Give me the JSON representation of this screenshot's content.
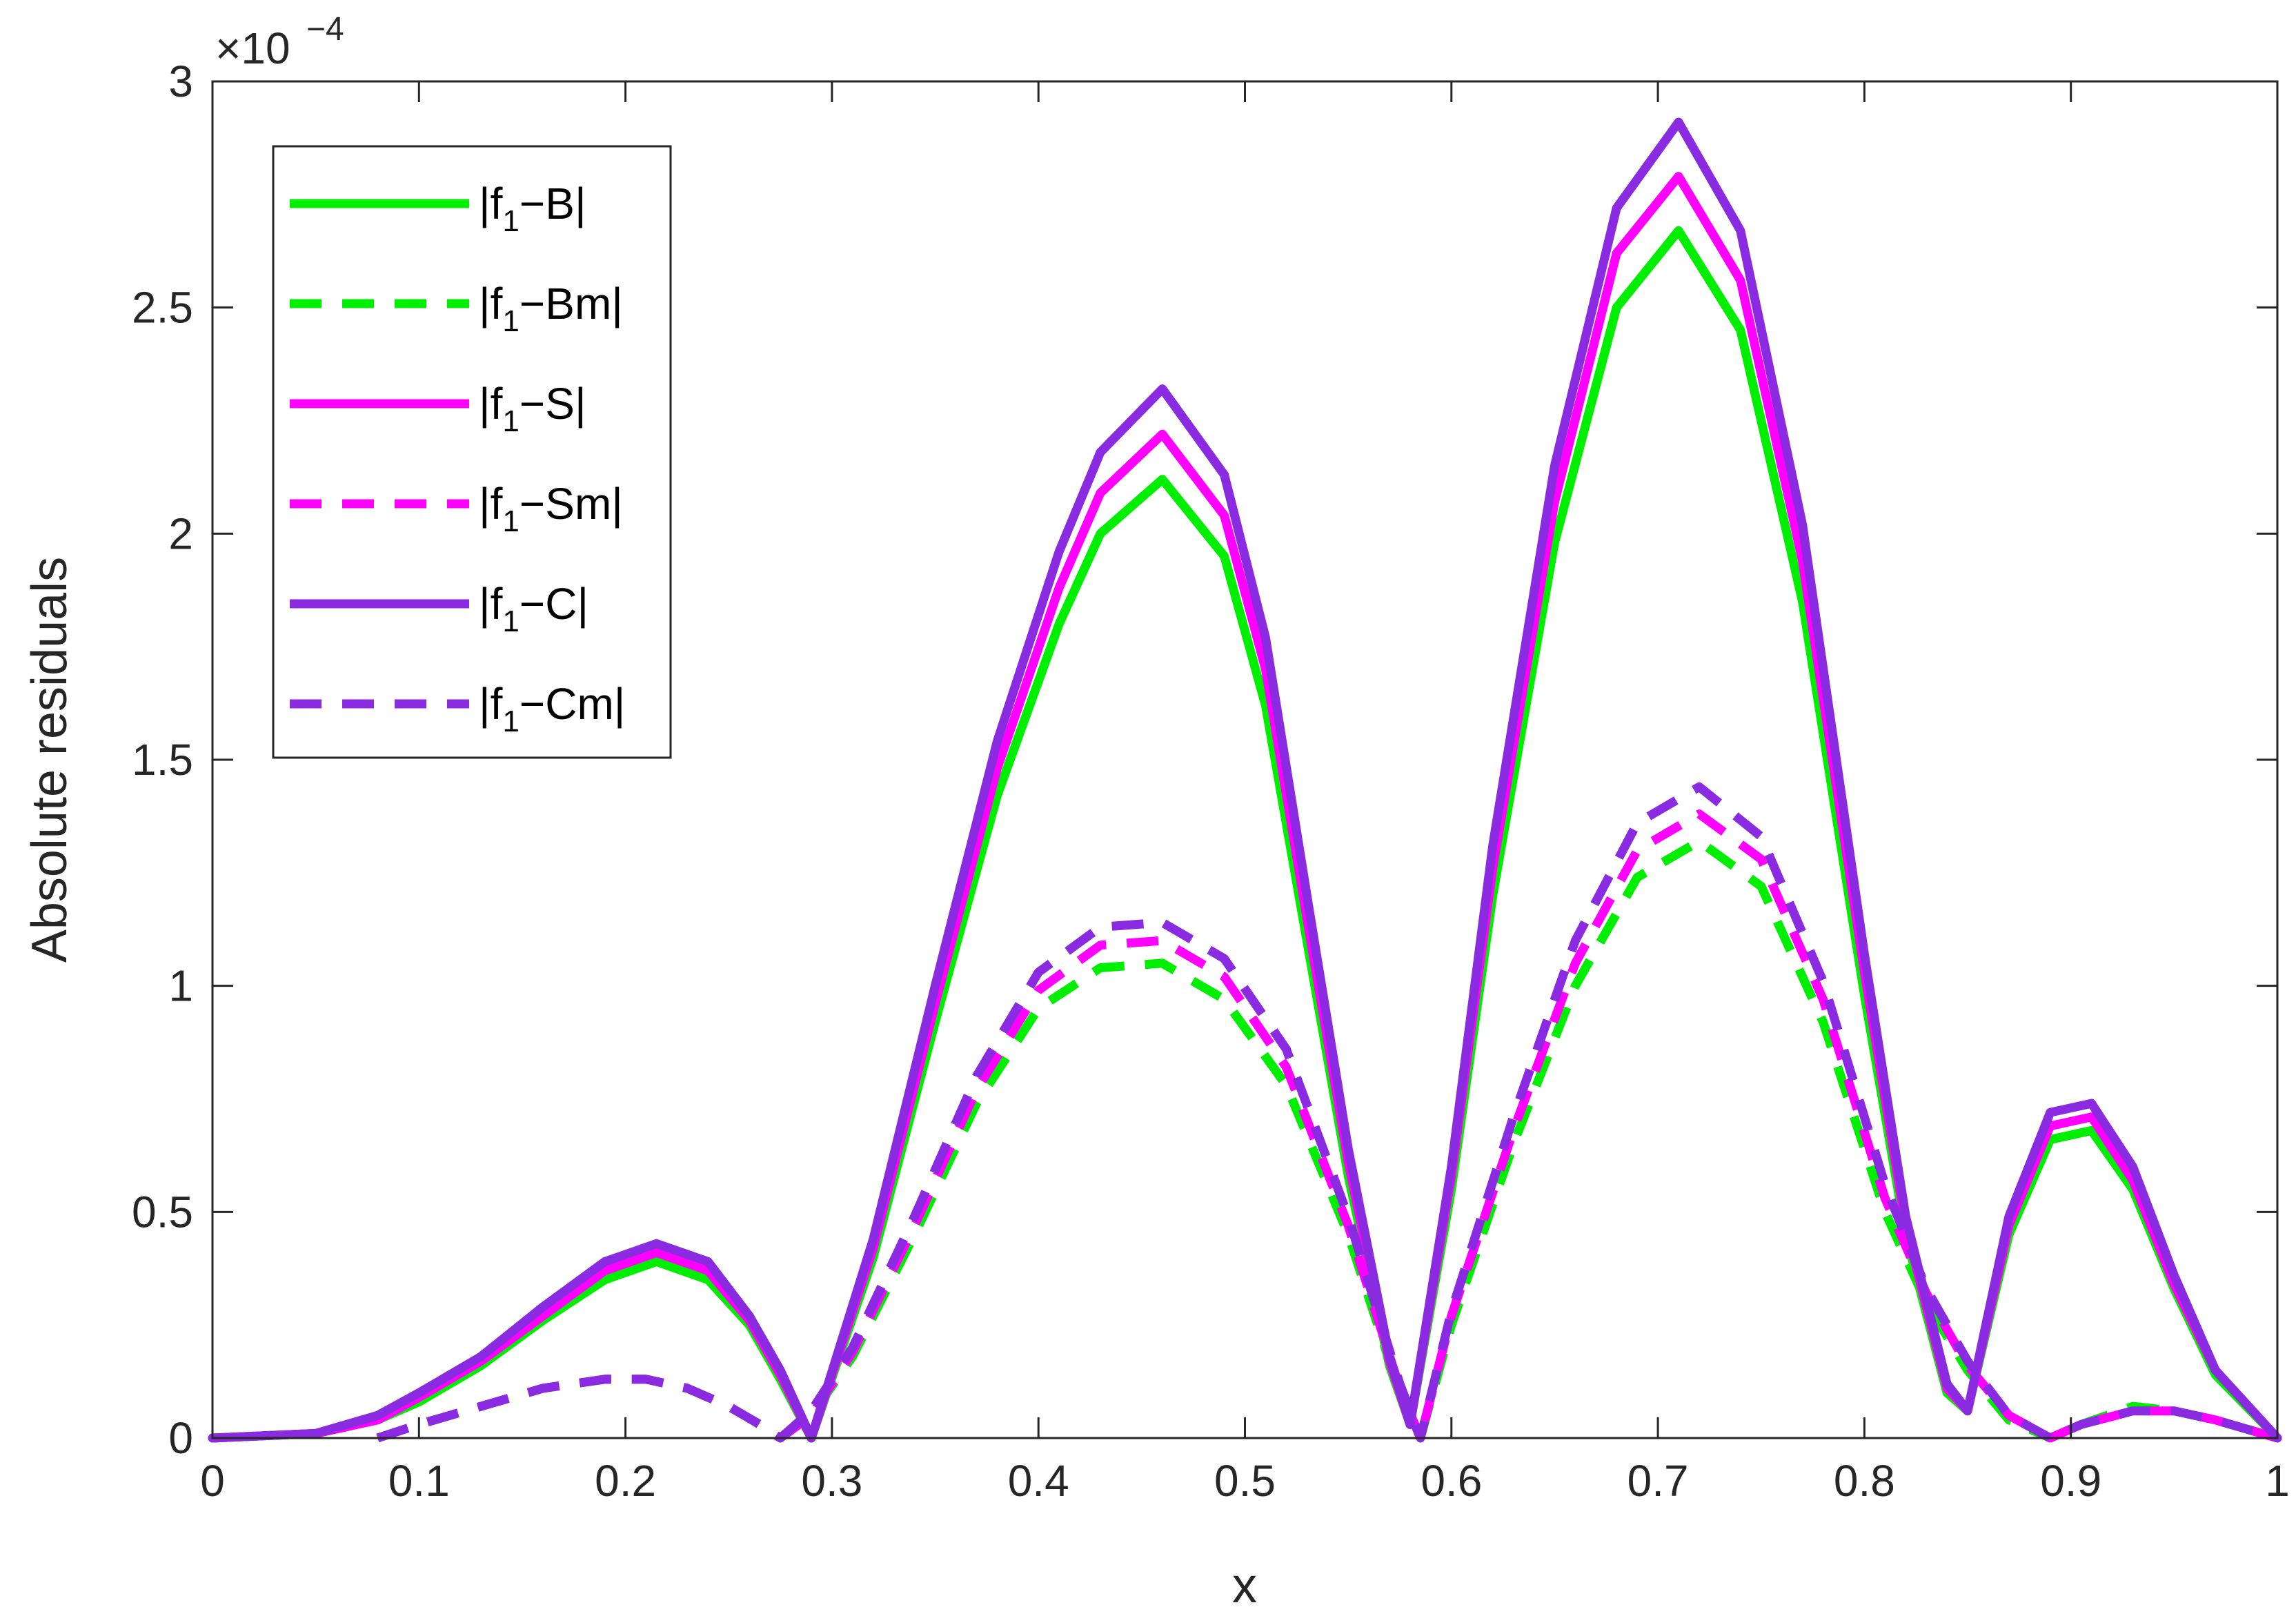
{
  "chart_data": {
    "type": "line",
    "title": "",
    "xlabel": "x",
    "ylabel": "Absolute residuals",
    "exponent_label": "×10",
    "exponent_power": "−4",
    "xlim": [
      0,
      1
    ],
    "ylim": [
      0,
      3
    ],
    "x_ticks": [
      "0",
      "0.1",
      "0.2",
      "0.3",
      "0.4",
      "0.5",
      "0.6",
      "0.7",
      "0.8",
      "0.9",
      "1"
    ],
    "y_ticks": [
      "0",
      "0.5",
      "1",
      "1.5",
      "2",
      "2.5",
      "3"
    ],
    "y_scale_note": "values in units of 1e-4",
    "grid": false,
    "legend_position": "top-left",
    "colors": {
      "green": "#00ee00",
      "magenta": "#ff00ff",
      "purple": "#8a2be2",
      "axis": "#262626"
    },
    "series": [
      {
        "name": "|f1−B|",
        "label_pre": "|f",
        "label_sub": "1",
        "label_post": "−B|",
        "color": "#00ee00",
        "dash": "solid",
        "x": [
          0,
          0.05,
          0.08,
          0.1,
          0.13,
          0.16,
          0.19,
          0.215,
          0.24,
          0.26,
          0.275,
          0.29,
          0.32,
          0.35,
          0.38,
          0.41,
          0.43,
          0.46,
          0.49,
          0.51,
          0.53,
          0.55,
          0.57,
          0.58,
          0.6,
          0.62,
          0.65,
          0.68,
          0.71,
          0.74,
          0.77,
          0.8,
          0.82,
          0.84,
          0.85,
          0.87,
          0.89,
          0.91,
          0.93,
          0.95,
          0.97,
          1.0
        ],
        "y": [
          0,
          0.01,
          0.04,
          0.08,
          0.16,
          0.26,
          0.35,
          0.39,
          0.35,
          0.25,
          0.13,
          0.0,
          0.4,
          0.92,
          1.42,
          1.8,
          2.0,
          2.12,
          1.95,
          1.62,
          1.1,
          0.58,
          0.16,
          0.03,
          0.55,
          1.2,
          1.98,
          2.5,
          2.67,
          2.45,
          1.85,
          0.98,
          0.45,
          0.1,
          0.06,
          0.45,
          0.66,
          0.68,
          0.55,
          0.33,
          0.14,
          0.0
        ]
      },
      {
        "name": "|f1−Bm|",
        "label_pre": "|f",
        "label_sub": "1",
        "label_post": "−Bm|",
        "color": "#00ee00",
        "dash": "dashed",
        "x": [
          0.08,
          0.1,
          0.13,
          0.16,
          0.19,
          0.21,
          0.23,
          0.25,
          0.265,
          0.275,
          0.29,
          0.31,
          0.34,
          0.37,
          0.4,
          0.43,
          0.46,
          0.49,
          0.52,
          0.55,
          0.575,
          0.585,
          0.6,
          0.63,
          0.66,
          0.69,
          0.72,
          0.75,
          0.78,
          0.81,
          0.83,
          0.85,
          0.87,
          0.89,
          0.905,
          0.93,
          0.95,
          0.97,
          1.0
        ],
        "y": [
          0.0,
          0.03,
          0.07,
          0.11,
          0.13,
          0.13,
          0.11,
          0.07,
          0.03,
          0.0,
          0.05,
          0.18,
          0.45,
          0.74,
          0.95,
          1.04,
          1.05,
          0.97,
          0.78,
          0.45,
          0.1,
          0.0,
          0.25,
          0.65,
          1.0,
          1.24,
          1.32,
          1.22,
          0.92,
          0.5,
          0.3,
          0.15,
          0.04,
          0.0,
          0.03,
          0.07,
          0.06,
          0.04,
          0.0
        ]
      },
      {
        "name": "|f1−S|",
        "label_pre": "|f",
        "label_sub": "1",
        "label_post": "−S|",
        "color": "#ff00ff",
        "dash": "solid",
        "x": [
          0,
          0.05,
          0.08,
          0.1,
          0.13,
          0.16,
          0.19,
          0.215,
          0.24,
          0.26,
          0.275,
          0.29,
          0.32,
          0.35,
          0.38,
          0.41,
          0.43,
          0.46,
          0.49,
          0.51,
          0.53,
          0.55,
          0.57,
          0.58,
          0.6,
          0.62,
          0.65,
          0.68,
          0.71,
          0.74,
          0.77,
          0.8,
          0.82,
          0.84,
          0.85,
          0.87,
          0.89,
          0.91,
          0.93,
          0.95,
          0.97,
          1.0
        ],
        "y": [
          0,
          0.01,
          0.04,
          0.09,
          0.17,
          0.27,
          0.37,
          0.41,
          0.37,
          0.26,
          0.14,
          0.0,
          0.42,
          0.96,
          1.48,
          1.88,
          2.09,
          2.22,
          2.04,
          1.7,
          1.15,
          0.61,
          0.17,
          0.03,
          0.58,
          1.26,
          2.07,
          2.62,
          2.79,
          2.56,
          1.94,
          1.03,
          0.47,
          0.11,
          0.06,
          0.47,
          0.69,
          0.71,
          0.57,
          0.34,
          0.15,
          0.0
        ]
      },
      {
        "name": "|f1−Sm|",
        "label_pre": "|f",
        "label_sub": "1",
        "label_post": "−Sm|",
        "color": "#ff00ff",
        "dash": "dashed",
        "x": [
          0.08,
          0.1,
          0.13,
          0.16,
          0.19,
          0.21,
          0.23,
          0.25,
          0.265,
          0.275,
          0.29,
          0.31,
          0.34,
          0.37,
          0.4,
          0.43,
          0.46,
          0.49,
          0.52,
          0.55,
          0.575,
          0.585,
          0.6,
          0.63,
          0.66,
          0.69,
          0.72,
          0.75,
          0.78,
          0.81,
          0.83,
          0.85,
          0.87,
          0.89,
          0.905,
          0.93,
          0.95,
          0.97,
          1.0
        ],
        "y": [
          0.0,
          0.03,
          0.07,
          0.11,
          0.13,
          0.13,
          0.11,
          0.07,
          0.03,
          0.0,
          0.05,
          0.19,
          0.47,
          0.77,
          0.99,
          1.09,
          1.1,
          1.02,
          0.82,
          0.47,
          0.11,
          0.0,
          0.27,
          0.68,
          1.05,
          1.3,
          1.38,
          1.28,
          0.97,
          0.53,
          0.32,
          0.16,
          0.05,
          0.0,
          0.03,
          0.06,
          0.06,
          0.04,
          0.0
        ]
      },
      {
        "name": "|f1−C|",
        "label_pre": "|f",
        "label_sub": "1",
        "label_post": "−C|",
        "color": "#8a2be2",
        "dash": "solid",
        "x": [
          0,
          0.05,
          0.08,
          0.1,
          0.13,
          0.16,
          0.19,
          0.215,
          0.24,
          0.26,
          0.275,
          0.29,
          0.32,
          0.35,
          0.38,
          0.41,
          0.43,
          0.46,
          0.49,
          0.51,
          0.53,
          0.55,
          0.57,
          0.58,
          0.6,
          0.62,
          0.65,
          0.68,
          0.71,
          0.74,
          0.77,
          0.8,
          0.82,
          0.84,
          0.85,
          0.87,
          0.89,
          0.91,
          0.93,
          0.95,
          0.97,
          1.0
        ],
        "y": [
          0,
          0.01,
          0.05,
          0.1,
          0.18,
          0.29,
          0.39,
          0.43,
          0.39,
          0.27,
          0.15,
          0.0,
          0.44,
          1.0,
          1.54,
          1.96,
          2.18,
          2.32,
          2.13,
          1.77,
          1.2,
          0.64,
          0.18,
          0.03,
          0.6,
          1.31,
          2.15,
          2.72,
          2.91,
          2.67,
          2.02,
          1.07,
          0.49,
          0.12,
          0.06,
          0.49,
          0.72,
          0.74,
          0.6,
          0.36,
          0.15,
          0.0
        ]
      },
      {
        "name": "|f1−Cm|",
        "label_pre": "|f",
        "label_sub": "1",
        "label_post": "−Cm|",
        "color": "#8a2be2",
        "dash": "dashed",
        "x": [
          0.08,
          0.1,
          0.13,
          0.16,
          0.19,
          0.21,
          0.23,
          0.25,
          0.265,
          0.275,
          0.29,
          0.31,
          0.34,
          0.37,
          0.4,
          0.43,
          0.46,
          0.49,
          0.52,
          0.55,
          0.575,
          0.585,
          0.6,
          0.63,
          0.66,
          0.69,
          0.72,
          0.75,
          0.78,
          0.81,
          0.83,
          0.85,
          0.87,
          0.89,
          0.905,
          0.93,
          0.95,
          0.97,
          1.0
        ],
        "y": [
          0.0,
          0.03,
          0.07,
          0.11,
          0.13,
          0.13,
          0.11,
          0.07,
          0.03,
          0.0,
          0.06,
          0.2,
          0.49,
          0.8,
          1.03,
          1.13,
          1.14,
          1.06,
          0.86,
          0.49,
          0.12,
          0.0,
          0.28,
          0.71,
          1.1,
          1.36,
          1.44,
          1.33,
          1.01,
          0.56,
          0.33,
          0.17,
          0.05,
          0.0,
          0.03,
          0.06,
          0.06,
          0.04,
          0.0
        ]
      }
    ]
  }
}
